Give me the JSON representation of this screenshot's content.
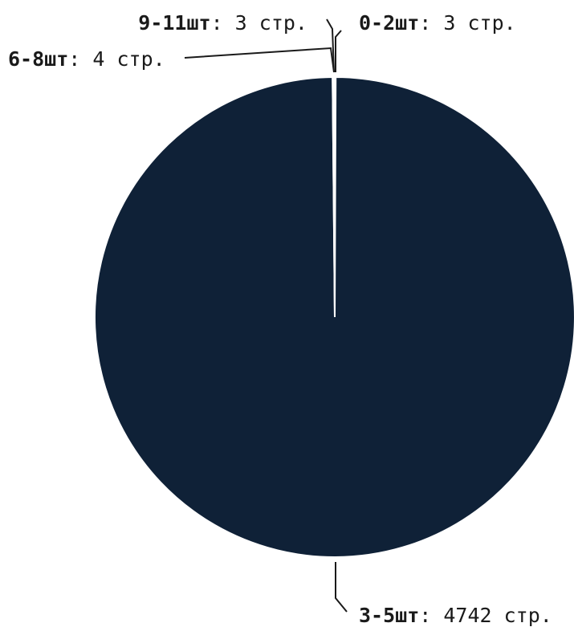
{
  "chart_data": {
    "type": "pie",
    "categories": [
      "0-2шт",
      "3-5шт",
      "6-8шт",
      "9-11шт"
    ],
    "values": [
      3,
      4742,
      4,
      3
    ],
    "value_suffix": " стр.",
    "colors": [
      "#0f2137",
      "#0f2137",
      "#0f2137",
      "#0f2137"
    ],
    "title": "",
    "legend": "none"
  }
}
